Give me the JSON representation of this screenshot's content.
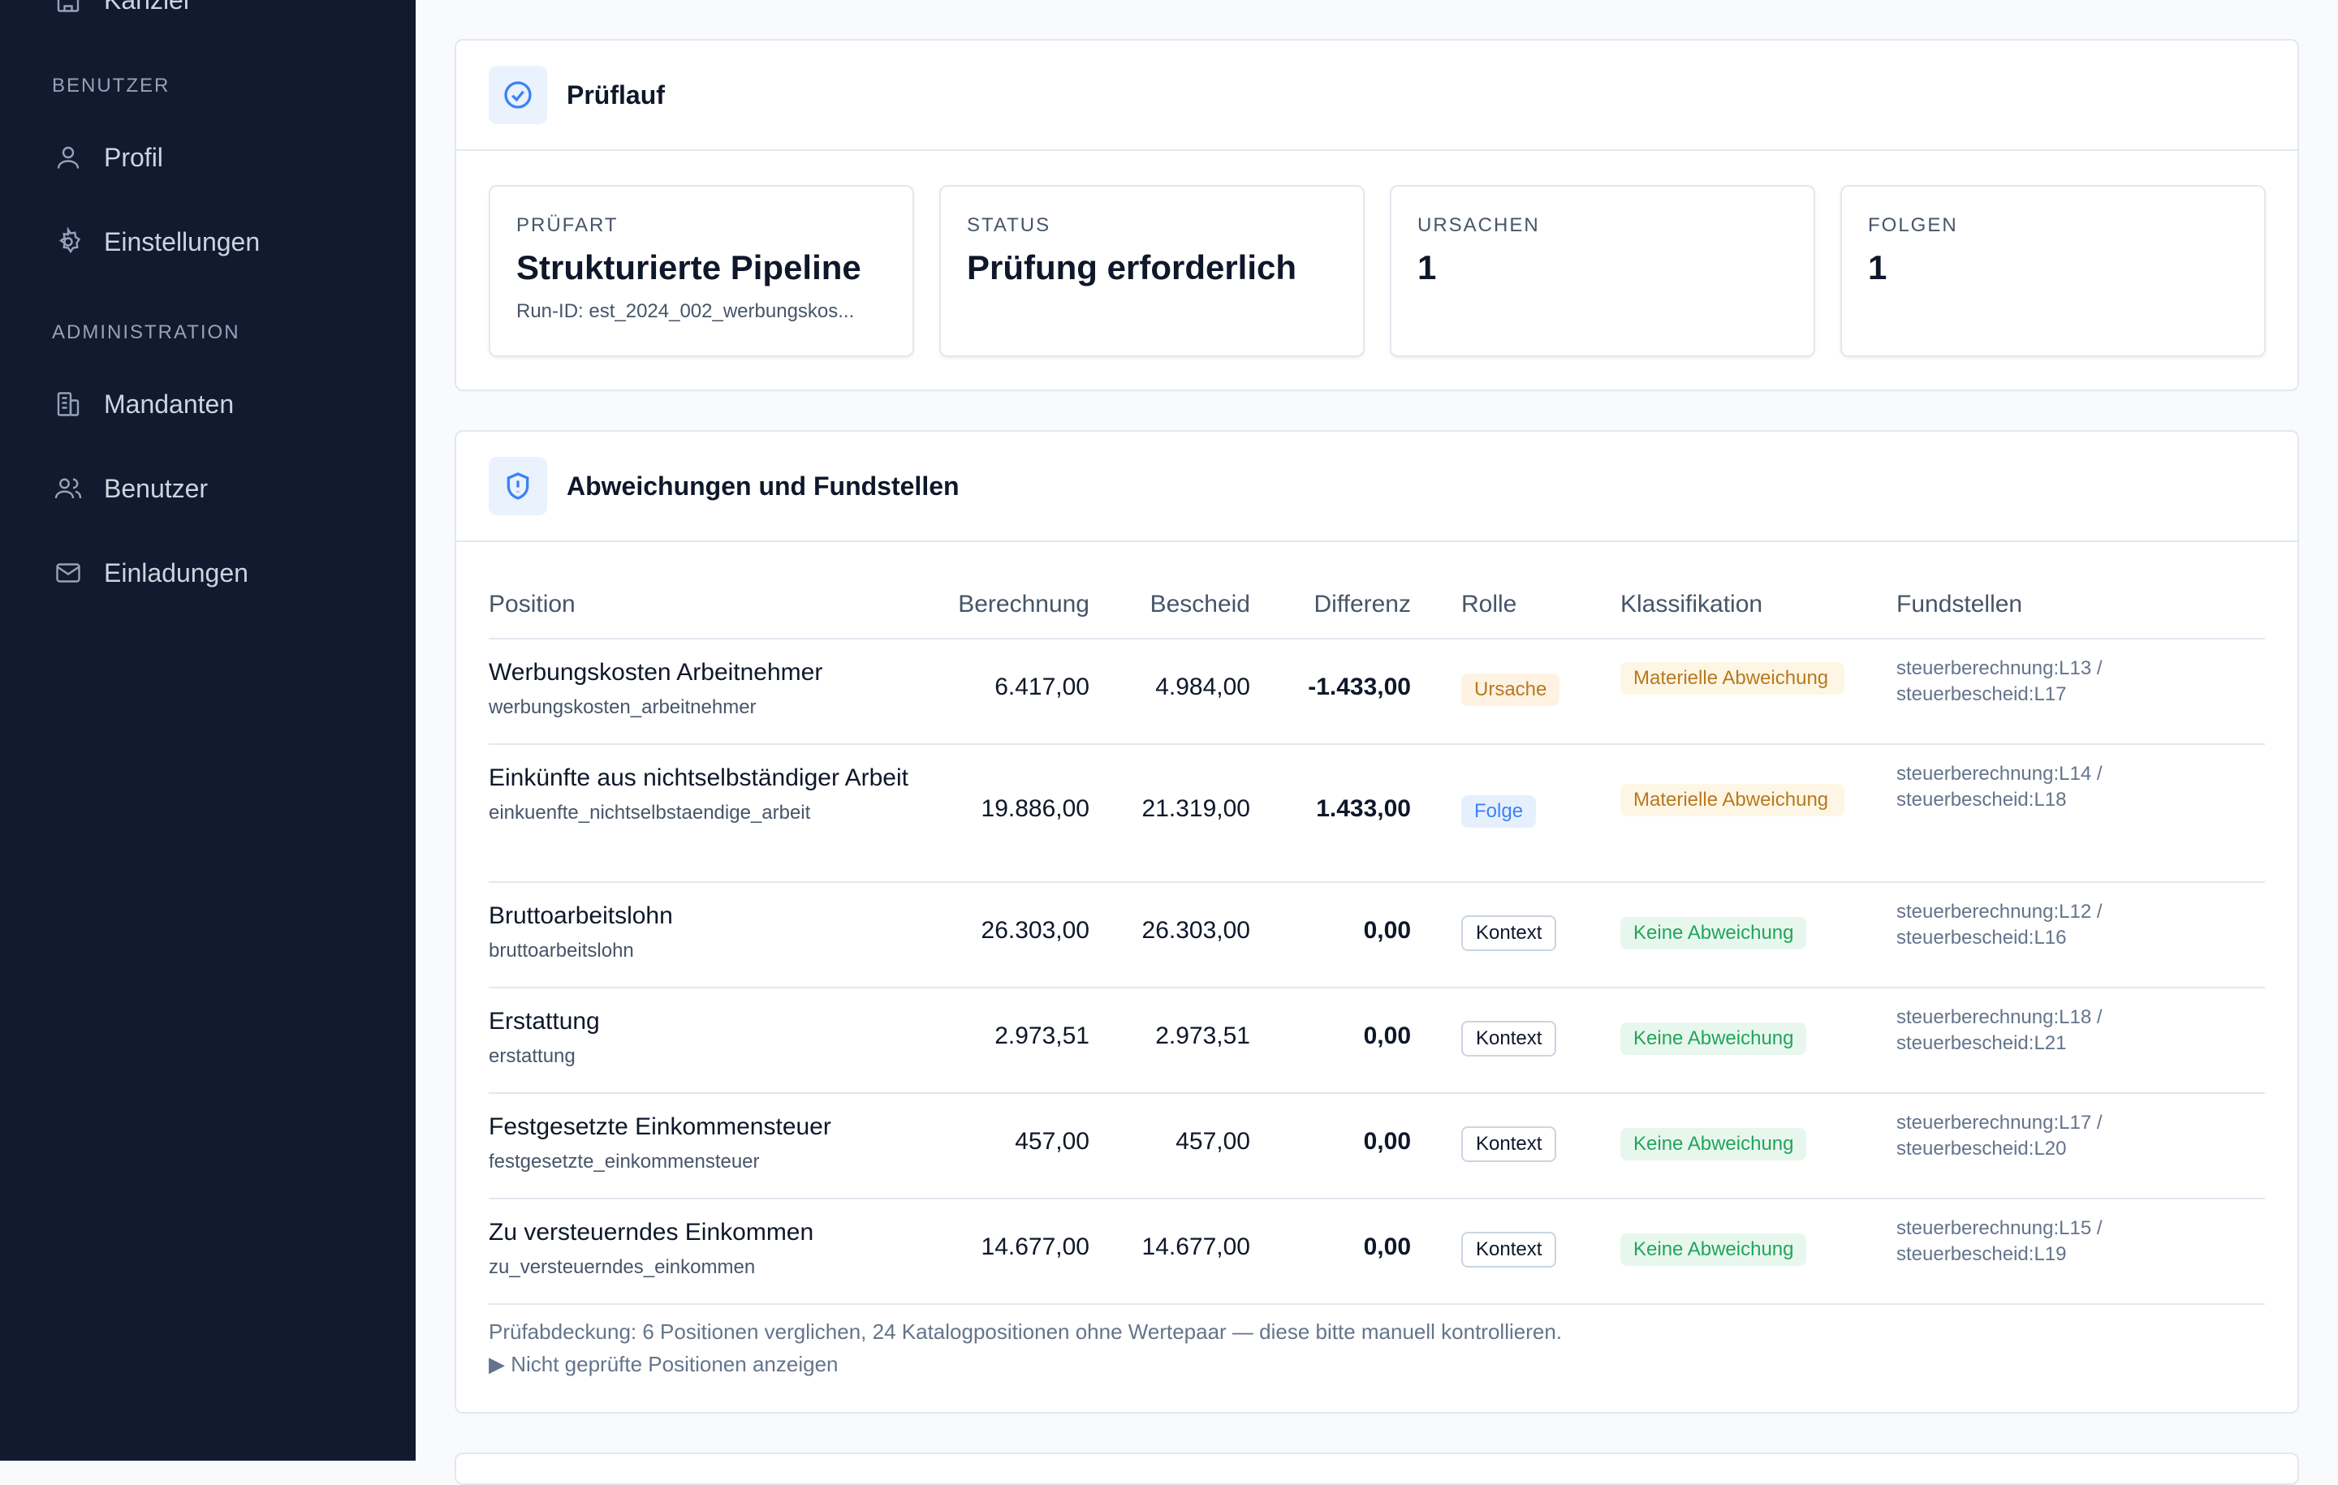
{
  "sidebar": {
    "top_item_label": "Kanzlei",
    "section_user": "BENUTZER",
    "profile": "Profil",
    "settings": "Einstellungen",
    "section_admin": "ADMINISTRATION",
    "clients": "Mandanten",
    "users": "Benutzer",
    "invites": "Einladungen"
  },
  "pruflauf": {
    "title": "Prüflauf",
    "stats": [
      {
        "label": "PRÜFART",
        "value": "Strukturierte Pipeline",
        "sub": "Run-ID: est_2024_002_werbungskos..."
      },
      {
        "label": "STATUS",
        "value": "Prüfung erforderlich",
        "sub": ""
      },
      {
        "label": "URSACHEN",
        "value": "1",
        "sub": ""
      },
      {
        "label": "FOLGEN",
        "value": "1",
        "sub": ""
      }
    ]
  },
  "abweichungen": {
    "title": "Abweichungen und Fundstellen",
    "headers": {
      "position": "Position",
      "berechnung": "Berechnung",
      "bescheid": "Bescheid",
      "differenz": "Differenz",
      "rolle": "Rolle",
      "klassifikation": "Klassifikation",
      "fundstellen": "Fundstellen"
    },
    "rows": [
      {
        "name": "Werbungskosten Arbeitnehmer",
        "key": "werbungskosten_arbeitnehmer",
        "berechnung": "6.417,00",
        "bescheid": "4.984,00",
        "differenz": "-1.433,00",
        "rolle": "Ursache",
        "klass": "Materielle Abweichung",
        "fund1": "steuerberechnung:L13 /",
        "fund2": "steuerbescheid:L17"
      },
      {
        "name": "Einkünfte aus nichtselbständiger Arbeit",
        "key": "einkuenfte_nichtselbstaendige_arbeit",
        "berechnung": "19.886,00",
        "bescheid": "21.319,00",
        "differenz": "1.433,00",
        "rolle": "Folge",
        "klass": "Materielle Abweichung",
        "fund1": "steuerberechnung:L14 /",
        "fund2": "steuerbescheid:L18"
      },
      {
        "name": "Bruttoarbeitslohn",
        "key": "bruttoarbeitslohn",
        "berechnung": "26.303,00",
        "bescheid": "26.303,00",
        "differenz": "0,00",
        "rolle": "Kontext",
        "klass": "Keine Abweichung",
        "fund1": "steuerberechnung:L12 /",
        "fund2": "steuerbescheid:L16"
      },
      {
        "name": "Erstattung",
        "key": "erstattung",
        "berechnung": "2.973,51",
        "bescheid": "2.973,51",
        "differenz": "0,00",
        "rolle": "Kontext",
        "klass": "Keine Abweichung",
        "fund1": "steuerberechnung:L18 /",
        "fund2": "steuerbescheid:L21"
      },
      {
        "name": "Festgesetzte Einkommensteuer",
        "key": "festgesetzte_einkommensteuer",
        "berechnung": "457,00",
        "bescheid": "457,00",
        "differenz": "0,00",
        "rolle": "Kontext",
        "klass": "Keine Abweichung",
        "fund1": "steuerberechnung:L17 /",
        "fund2": "steuerbescheid:L20"
      },
      {
        "name": "Zu versteuerndes Einkommen",
        "key": "zu_versteuerndes_einkommen",
        "berechnung": "14.677,00",
        "bescheid": "14.677,00",
        "differenz": "0,00",
        "rolle": "Kontext",
        "klass": "Keine Abweichung",
        "fund1": "steuerberechnung:L15 /",
        "fund2": "steuerbescheid:L19"
      }
    ],
    "coverage_note": "Prüfabdeckung: 6 Positionen verglichen, 24 Katalogpositionen ohne Wertepaar — diese bitte manuell kontrollieren.",
    "toggle_label": "▶ Nicht geprüfte Positionen anzeigen"
  }
}
